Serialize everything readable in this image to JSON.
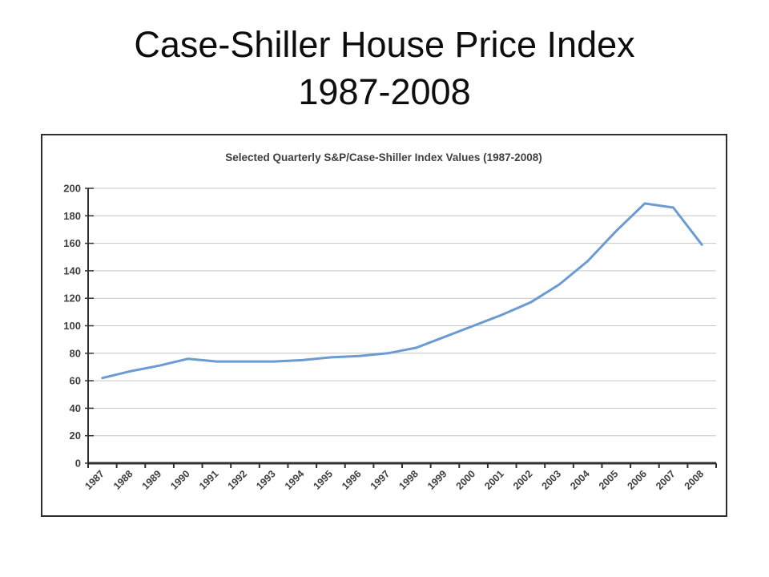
{
  "slide": {
    "title_line1": "Case-Shiller House Price Index",
    "title_line2": "1987-2008"
  },
  "chart_data": {
    "type": "line",
    "title": "Selected Quarterly S&P/Case-Shiller Index Values (1987-2008)",
    "categories": [
      "1987",
      "1988",
      "1989",
      "1990",
      "1991",
      "1992",
      "1993",
      "1994",
      "1995",
      "1996",
      "1997",
      "1998",
      "1999",
      "2000",
      "2001",
      "2002",
      "2003",
      "2004",
      "2005",
      "2006",
      "2007",
      "2008"
    ],
    "values": [
      62,
      67,
      71,
      76,
      74,
      74,
      74,
      75,
      77,
      78,
      80,
      84,
      92,
      100,
      108,
      117,
      130,
      147,
      169,
      189,
      186,
      159
    ],
    "series_name": "S&P/Case-Shiller Index",
    "xlabel": "",
    "ylabel": "",
    "ylim": [
      0,
      200
    ],
    "ytick_step": 20,
    "yticks": [
      0,
      20,
      40,
      60,
      80,
      100,
      120,
      140,
      160,
      180,
      200
    ],
    "grid": "horizontal",
    "legend": "none",
    "x_label_rotation_deg": -45,
    "line_color": "#6b9bd2",
    "gridline_color": "#c6c6c6",
    "axis_color": "#303030",
    "label_color": "#404040",
    "title_color": "#3f3f3f"
  }
}
